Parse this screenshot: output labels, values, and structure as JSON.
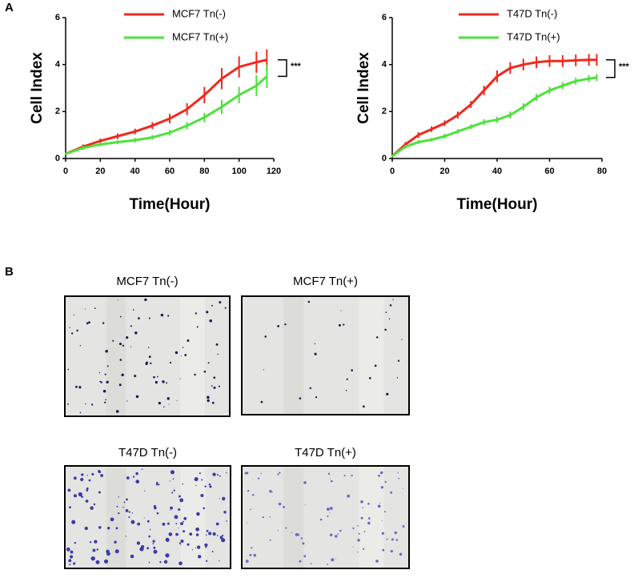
{
  "panel_labels": [
    "A",
    "B"
  ],
  "chart_data": [
    {
      "type": "line",
      "x_label": "Time(Hour)",
      "y_label": "Cell Index",
      "annotation": "***",
      "xlim": [
        0,
        120
      ],
      "xticks": [
        0,
        20,
        40,
        60,
        80,
        100,
        120
      ],
      "ylim": [
        0,
        6
      ],
      "yticks": [
        0,
        2,
        4,
        6
      ],
      "legend": "top-left",
      "grid": false,
      "x": [
        0,
        10,
        20,
        30,
        40,
        50,
        60,
        70,
        80,
        90,
        100,
        110,
        116
      ],
      "series": [
        {
          "name": "MCF7 Tn(-)",
          "color": "#f0281e",
          "values": [
            0.2,
            0.5,
            0.75,
            0.95,
            1.15,
            1.4,
            1.7,
            2.1,
            2.7,
            3.4,
            3.9,
            4.1,
            4.2
          ],
          "errors": [
            0.05,
            0.1,
            0.1,
            0.12,
            0.12,
            0.15,
            0.2,
            0.25,
            0.35,
            0.45,
            0.45,
            0.45,
            0.45
          ]
        },
        {
          "name": "MCF7 Tn(+)",
          "color": "#4ee23c",
          "values": [
            0.2,
            0.45,
            0.6,
            0.7,
            0.78,
            0.9,
            1.1,
            1.4,
            1.75,
            2.2,
            2.7,
            3.1,
            3.5
          ],
          "errors": [
            0.05,
            0.08,
            0.08,
            0.08,
            0.1,
            0.1,
            0.12,
            0.15,
            0.2,
            0.3,
            0.35,
            0.45,
            0.5
          ]
        }
      ]
    },
    {
      "type": "line",
      "x_label": "Time(Hour)",
      "y_label": "Cell Index",
      "annotation": "***",
      "xlim": [
        0,
        80
      ],
      "xticks": [
        0,
        20,
        40,
        60,
        80
      ],
      "ylim": [
        0,
        6
      ],
      "yticks": [
        0,
        2,
        4,
        6
      ],
      "legend": "top-left",
      "grid": false,
      "x": [
        0,
        5,
        10,
        15,
        20,
        25,
        30,
        35,
        40,
        45,
        50,
        55,
        60,
        65,
        70,
        75,
        78
      ],
      "series": [
        {
          "name": "T47D Tn(-)",
          "color": "#f0281e",
          "values": [
            0.1,
            0.6,
            1.0,
            1.25,
            1.5,
            1.85,
            2.3,
            2.9,
            3.5,
            3.85,
            4.0,
            4.1,
            4.15,
            4.15,
            4.18,
            4.2,
            4.2
          ],
          "errors": [
            0.05,
            0.1,
            0.12,
            0.12,
            0.12,
            0.15,
            0.15,
            0.2,
            0.25,
            0.25,
            0.25,
            0.25,
            0.25,
            0.25,
            0.25,
            0.25,
            0.25
          ]
        },
        {
          "name": "T47D Tn(+)",
          "color": "#4ee23c",
          "values": [
            0.1,
            0.5,
            0.7,
            0.8,
            0.95,
            1.15,
            1.35,
            1.55,
            1.65,
            1.85,
            2.2,
            2.6,
            2.9,
            3.1,
            3.3,
            3.4,
            3.45
          ],
          "errors": [
            0.05,
            0.08,
            0.08,
            0.08,
            0.1,
            0.1,
            0.1,
            0.12,
            0.12,
            0.15,
            0.15,
            0.15,
            0.15,
            0.15,
            0.15,
            0.15,
            0.15
          ]
        }
      ]
    }
  ],
  "images": [
    {
      "caption": "MCF7 Tn(-)"
    },
    {
      "caption": "MCF7 Tn(+)"
    },
    {
      "caption": "T47D Tn(-)"
    },
    {
      "caption": "T47D Tn(+)"
    }
  ]
}
